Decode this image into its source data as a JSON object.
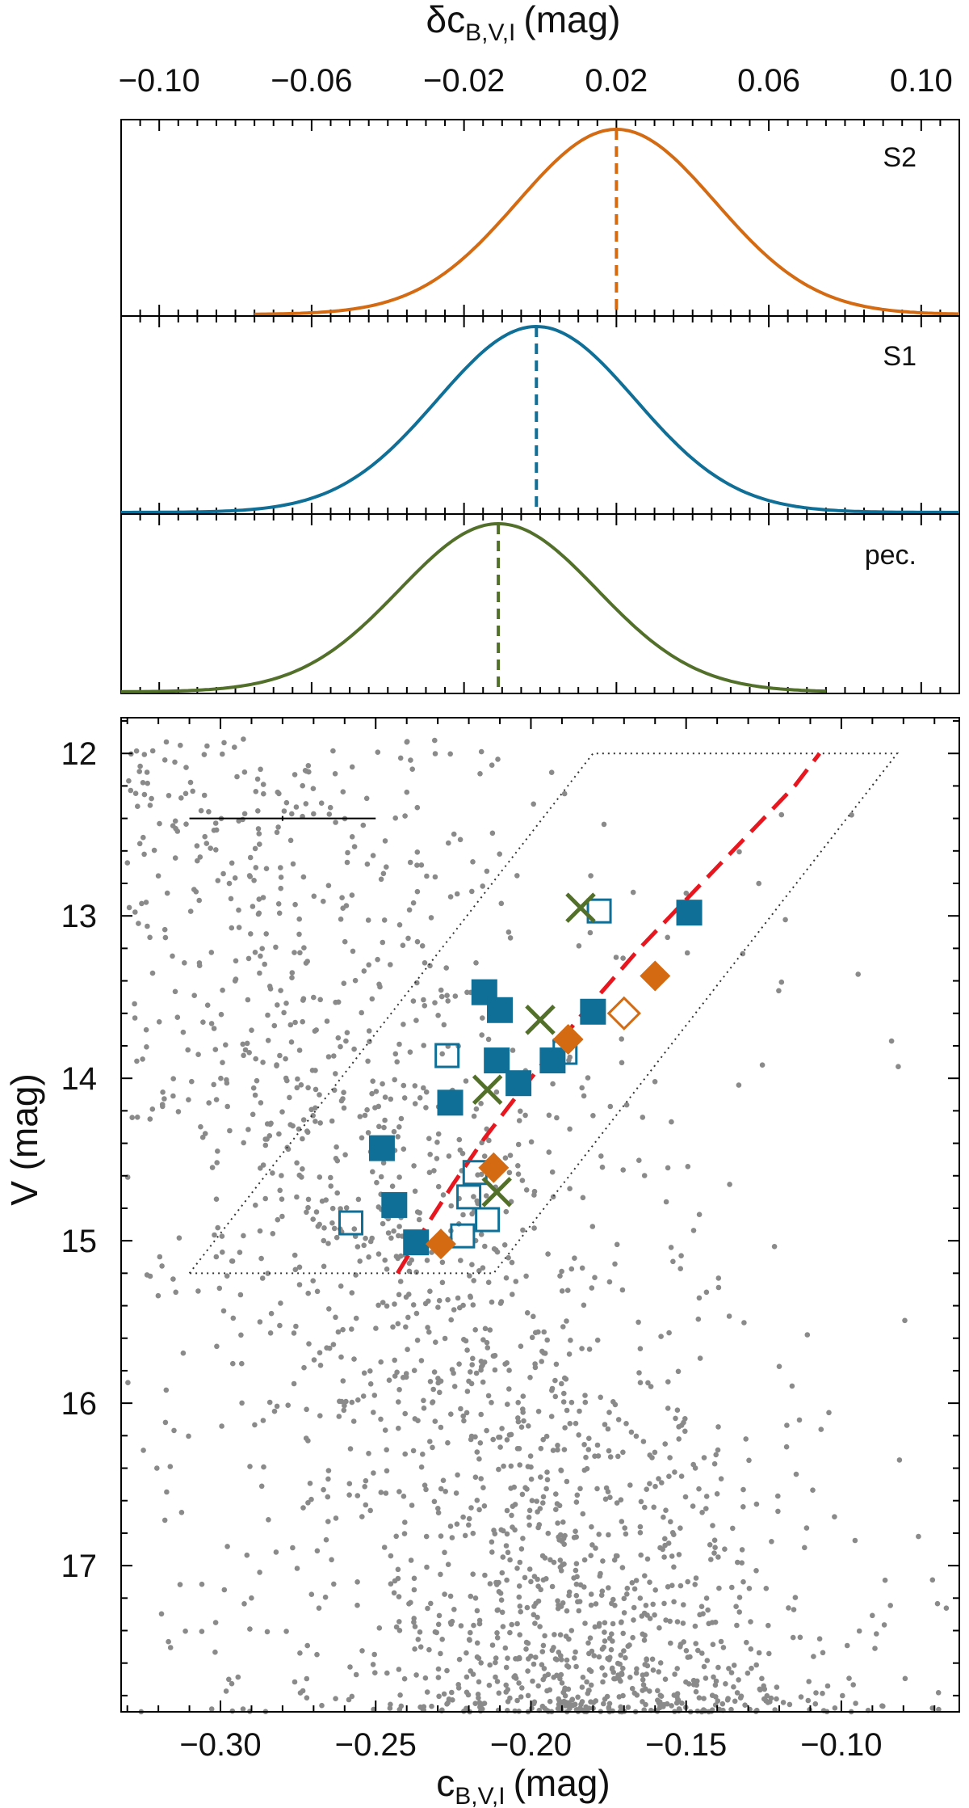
{
  "chart_data": [
    {
      "type": "line",
      "panel": "top distributions",
      "x_axis": {
        "label_base": "δc",
        "label_subscript": "B,V,I",
        "label_unit": "(mag)",
        "ticks": [
          -0.1,
          -0.06,
          -0.02,
          0.02,
          0.06,
          0.1
        ],
        "tick_labels": [
          "−0.10",
          "−0.06",
          "−0.02",
          "0.02",
          "0.06",
          "0.10"
        ],
        "xlim": [
          -0.11,
          0.11
        ]
      },
      "series": [
        {
          "name": "S2",
          "label": "S2",
          "color": "#d46a12",
          "mean": 0.02,
          "sigma": 0.026,
          "range": [
            -0.075,
            0.11
          ]
        },
        {
          "name": "S1",
          "label": "S1",
          "color": "#0f6f96",
          "mean": -0.001,
          "sigma": 0.026,
          "range": [
            -0.11,
            0.11
          ]
        },
        {
          "name": "pec.",
          "label": "pec.",
          "color": "#53702a",
          "mean": -0.011,
          "sigma": 0.026,
          "range": [
            -0.11,
            0.075
          ]
        }
      ]
    },
    {
      "type": "scatter",
      "panel": "main CMD",
      "x_axis": {
        "label_base": "c",
        "label_subscript": "B,V,I",
        "label_unit": "(mag)",
        "ticks": [
          -0.3,
          -0.25,
          -0.2,
          -0.15,
          -0.1
        ],
        "tick_labels": [
          "−0.30",
          "−0.25",
          "−0.20",
          "−0.15",
          "−0.10"
        ],
        "xlim": [
          -0.332,
          -0.062
        ]
      },
      "y_axis": {
        "label": "V (mag)",
        "ticks": [
          12,
          13,
          14,
          15,
          16,
          17
        ],
        "tick_labels": [
          "12",
          "13",
          "14",
          "15",
          "16",
          "17"
        ],
        "ylim": [
          11.78,
          17.9
        ],
        "inverted": true
      },
      "colors": {
        "field": "#8a8a8a",
        "s1": "#0f6f96",
        "s2": "#d46a12",
        "pec": "#53702a",
        "fit": "#e8161e",
        "box": "#333333"
      },
      "error_bar": {
        "x_center": -0.28,
        "x_half_width": 0.03,
        "y": 12.4
      },
      "selection_box": [
        [
          -0.31,
          15.2
        ],
        [
          -0.18,
          12.0
        ],
        [
          -0.082,
          12.0
        ],
        [
          -0.212,
          15.2
        ]
      ],
      "fit_line": {
        "style": "dashed",
        "x": [
          -0.243,
          -0.235,
          -0.225,
          -0.215,
          -0.205,
          -0.195,
          -0.185,
          -0.175,
          -0.165,
          -0.155,
          -0.145,
          -0.135,
          -0.125,
          -0.115,
          -0.107
        ],
        "y": [
          15.2,
          14.95,
          14.65,
          14.37,
          14.12,
          13.88,
          13.64,
          13.42,
          13.2,
          13.0,
          12.8,
          12.6,
          12.4,
          12.2,
          12.0
        ]
      },
      "s1_filled": [
        {
          "x": -0.149,
          "y": 12.98
        },
        {
          "x": -0.215,
          "y": 13.47
        },
        {
          "x": -0.21,
          "y": 13.58
        },
        {
          "x": -0.18,
          "y": 13.59
        },
        {
          "x": -0.211,
          "y": 13.89
        },
        {
          "x": -0.193,
          "y": 13.89
        },
        {
          "x": -0.204,
          "y": 14.03
        },
        {
          "x": -0.226,
          "y": 14.15
        },
        {
          "x": -0.248,
          "y": 14.43
        },
        {
          "x": -0.244,
          "y": 14.78
        },
        {
          "x": -0.237,
          "y": 15.01
        }
      ],
      "s1_open": [
        {
          "x": -0.178,
          "y": 12.97
        },
        {
          "x": -0.227,
          "y": 13.86
        },
        {
          "x": -0.189,
          "y": 13.84
        },
        {
          "x": -0.218,
          "y": 14.58
        },
        {
          "x": -0.22,
          "y": 14.73
        },
        {
          "x": -0.258,
          "y": 14.89
        },
        {
          "x": -0.214,
          "y": 14.87
        },
        {
          "x": -0.222,
          "y": 14.97
        }
      ],
      "s2_filled": [
        {
          "x": -0.16,
          "y": 13.37
        },
        {
          "x": -0.188,
          "y": 13.76
        },
        {
          "x": -0.212,
          "y": 14.55
        },
        {
          "x": -0.229,
          "y": 15.02
        }
      ],
      "s2_open": [
        {
          "x": -0.17,
          "y": 13.6
        }
      ],
      "pec": [
        {
          "x": -0.184,
          "y": 12.95
        },
        {
          "x": -0.197,
          "y": 13.64
        },
        {
          "x": -0.214,
          "y": 14.07
        },
        {
          "x": -0.211,
          "y": 14.7
        }
      ]
    }
  ]
}
